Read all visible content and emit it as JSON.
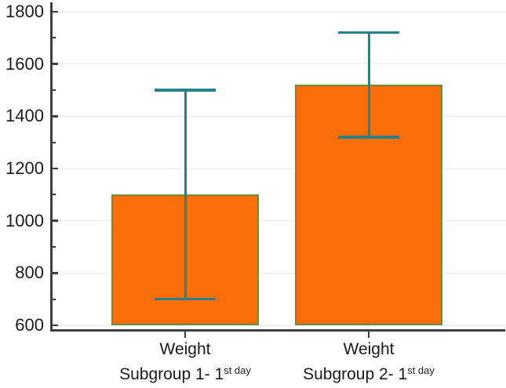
{
  "chart_data": {
    "type": "bar",
    "title": "",
    "xlabel": "",
    "ylabel": "",
    "categories": [
      {
        "line1": "Weight",
        "line2_main": "Subgroup 1- 1",
        "line2_sup": "st day"
      },
      {
        "line1": "Weight",
        "line2_main": "Subgroup 2- 1",
        "line2_sup": "st day"
      }
    ],
    "values": [
      1100,
      1520
    ],
    "error_low": [
      700,
      1320
    ],
    "error_high": [
      1500,
      1720
    ],
    "ylim": [
      600,
      1800
    ],
    "y_major_step": 200,
    "y_minor_step": 100,
    "y_tick_labels": [
      "600",
      "800",
      "1000",
      "1200",
      "1400",
      "1600",
      "1800"
    ],
    "grid": "horizontal-major",
    "legend": "none",
    "colors": {
      "bar_fill": "#FA6E0A",
      "bar_border": "#6B8E3A",
      "error_bar": "#26808E",
      "axis": "#3F3F3F",
      "gridline": "#EAEAEA",
      "text": "#1A1A1A",
      "background": "#FFFFFF"
    }
  }
}
